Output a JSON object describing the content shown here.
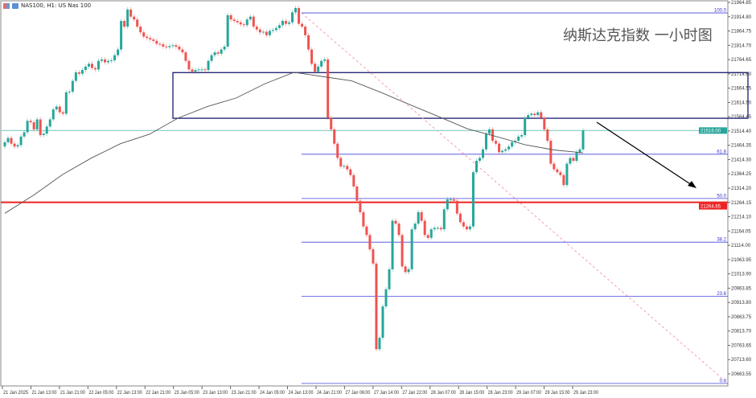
{
  "header": {
    "symbol_label": "NAS100, H1:  US Nas 100",
    "icons": [
      "grid-icon",
      "chart-icon"
    ]
  },
  "annotation_text": "纳斯达克指数 一小时图",
  "colors": {
    "bull": "#26a69a",
    "bear": "#ef5350",
    "rectangle": "#1a1a6e",
    "fib": "#4444dd",
    "current_line": "#8fd3c8",
    "support_line": "#ee2222",
    "ma": "#555555"
  },
  "chart_data": {
    "type": "candlestick",
    "title": "",
    "ylim": [
      20630,
      21964.85
    ],
    "y_ticks": [
      "21964.85",
      "21914.80",
      "21864.75",
      "21814.70",
      "21764.65",
      "21714.60",
      "21664.55",
      "21614.50",
      "21564.45",
      "21514.40",
      "21464.35",
      "21414.30",
      "21364.25",
      "21314.20",
      "21264.15",
      "21214.10",
      "21164.05",
      "21114.00",
      "21063.95",
      "21013.90",
      "20963.85",
      "20913.80",
      "20863.75",
      "20813.70",
      "20763.65",
      "20713.60",
      "20663.55"
    ],
    "x_ticks": [
      "21 Jan 2025",
      "21 Jan 13:00",
      "21 Jan 21:00",
      "22 Jan 05:00",
      "22 Jan 13:00",
      "22 Jan 21:00",
      "23 Jan 05:00",
      "23 Jan 13:00",
      "23 Jan 21:00",
      "24 Jan 05:00",
      "24 Jan 13:00",
      "24 Jan 21:00",
      "27 Jan 06:00",
      "27 Jan 14:00",
      "27 Jan 22:00",
      "28 Jan 07:00",
      "28 Jan 15:00",
      "28 Jan 23:00",
      "29 Jan 07:00",
      "29 Jan 15:00",
      "29 Jan 23:00"
    ],
    "first_open": 21460,
    "closes": [
      21475,
      21490,
      21470,
      21460,
      21465,
      21495,
      21510,
      21550,
      21545,
      21520,
      21555,
      21500,
      21505,
      21530,
      21555,
      21590,
      21600,
      21580,
      21575,
      21650,
      21652,
      21690,
      21720,
      21715,
      21728,
      21740,
      21750,
      21735,
      21730,
      21760,
      21765,
      21755,
      21760,
      21762,
      21780,
      21800,
      21900,
      21880,
      21940,
      21915,
      21905,
      21880,
      21860,
      21845,
      21840,
      21835,
      21830,
      21820,
      21818,
      21810,
      21808,
      21812,
      21815,
      21810,
      21800,
      21790,
      21760,
      21730,
      21722,
      21728,
      21730,
      21730,
      21728,
      21760,
      21780,
      21790,
      21785,
      21800,
      21810,
      21920,
      21905,
      21900,
      21895,
      21888,
      21885,
      21905,
      21915,
      21880,
      21870,
      21860,
      21862,
      21850,
      21865,
      21868,
      21875,
      21885,
      21900,
      21890,
      21895,
      21930,
      21945,
      21890,
      21880,
      21850,
      21800,
      21750,
      21722,
      21740,
      21760,
      21765,
      21560,
      21520,
      21470,
      21420,
      21390,
      21392,
      21380,
      21360,
      21320,
      21270,
      21230,
      21180,
      21150,
      21100,
      21050,
      20750,
      20790,
      20900,
      20960,
      21030,
      21200,
      21190,
      21150,
      21040,
      21020,
      21030,
      21170,
      21190,
      21230,
      21200,
      21150,
      21140,
      21170,
      21175,
      21175,
      21170,
      21240,
      21275,
      21275,
      21270,
      21225,
      21195,
      21180,
      21170,
      21180,
      21370,
      21410,
      21420,
      21450,
      21505,
      21520,
      21480,
      21470,
      21440,
      21445,
      21450,
      21460,
      21475,
      21480,
      21495,
      21500,
      21560,
      21570,
      21575,
      21570,
      21580,
      21560,
      21520,
      21480,
      21400,
      21380,
      21370,
      21360,
      21325,
      21400,
      21420,
      21410,
      21440,
      21450,
      21516
    ],
    "moving_average": [
      21226,
      21290,
      21362,
      21420,
      21470,
      21503,
      21560,
      21600,
      21630,
      21680,
      21720,
      21705,
      21690,
      21650,
      21607,
      21565,
      21522,
      21495,
      21466,
      21448,
      21438
    ],
    "levels": {
      "current_price": "21516.00",
      "support_price": "21264.65",
      "zone": [
        21559,
        21719
      ],
      "fibonacci": [
        {
          "label": "100.0",
          "price": 21928
        },
        {
          "label": "61.8",
          "price": 21433
        },
        {
          "label": "50.0",
          "price": 21278
        },
        {
          "label": "38.2",
          "price": 21125
        },
        {
          "label": "23.6",
          "price": 20935
        },
        {
          "label": "0.0",
          "price": 20630
        }
      ]
    }
  }
}
